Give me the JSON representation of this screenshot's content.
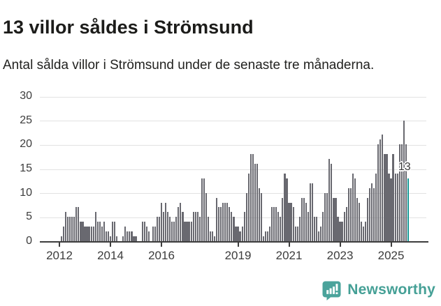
{
  "header": {
    "title": "13 villor såldes i Strömsund",
    "subtitle": "Antal sålda villor i Strömsund under de senaste tre månaderna."
  },
  "chart_data": {
    "type": "bar",
    "title": "13 villor såldes i Strömsund",
    "subtitle": "Antal sålda villor i Strömsund under de senaste tre månaderna.",
    "ylim": [
      0,
      30
    ],
    "y_ticks": [
      0,
      5,
      10,
      15,
      20,
      25,
      30
    ],
    "x_ticks": [
      2012,
      2014,
      2016,
      2019,
      2021,
      2023,
      2025
    ],
    "grid": true,
    "legend": "none",
    "bar_color": "#696970",
    "highlight_color": "#169a96",
    "axis_color": "#3d3d3d",
    "grid_color": "#e2e2e2",
    "first_year": 2011,
    "first_month": 7,
    "values_by_year": {
      "2011": [
        0,
        0,
        0,
        0,
        0,
        0
      ],
      "2012": [
        0,
        1,
        3,
        6,
        5,
        5,
        5,
        5,
        7,
        7,
        4,
        4
      ],
      "2013": [
        3,
        3,
        3,
        3,
        3,
        6,
        4,
        4,
        3,
        4,
        2,
        2
      ],
      "2014": [
        1,
        4,
        4,
        1,
        0,
        0,
        1,
        3,
        2,
        2,
        2,
        1
      ],
      "2015": [
        1,
        0,
        0,
        4,
        4,
        3,
        2,
        0,
        3,
        3,
        5,
        5
      ],
      "2016": [
        8,
        6,
        8,
        6,
        5,
        4,
        4,
        5,
        7,
        8,
        6,
        4
      ],
      "2017": [
        4,
        4,
        4,
        6,
        6,
        6,
        5,
        13,
        13,
        10,
        5,
        2
      ],
      "2018": [
        2,
        1,
        9,
        7,
        7,
        8,
        8,
        8,
        7,
        6,
        5,
        3
      ],
      "2019": [
        3,
        2,
        3,
        6,
        10,
        14,
        18,
        18,
        16,
        16,
        11,
        10
      ],
      "2020": [
        1,
        2,
        2,
        3,
        7,
        7,
        7,
        6,
        5,
        9,
        14,
        13
      ],
      "2021": [
        8,
        8,
        7,
        3,
        3,
        5,
        9,
        9,
        8,
        6,
        12,
        12
      ],
      "2022": [
        5,
        5,
        2,
        3,
        6,
        10,
        10,
        17,
        16,
        9,
        9,
        5
      ],
      "2023": [
        4,
        4,
        6,
        7,
        11,
        11,
        14,
        13,
        9,
        8,
        4,
        3
      ],
      "2024": [
        4,
        9,
        11,
        12,
        11,
        14,
        20,
        21,
        22,
        18,
        18,
        14
      ],
      "2025": [
        13,
        18,
        14,
        14,
        20,
        20,
        25,
        20,
        13
      ],
      "note": null
    },
    "highlight_last": true,
    "annotation": {
      "text": "13",
      "value": 13
    }
  },
  "footer": {
    "brand": "Newsworthy"
  }
}
